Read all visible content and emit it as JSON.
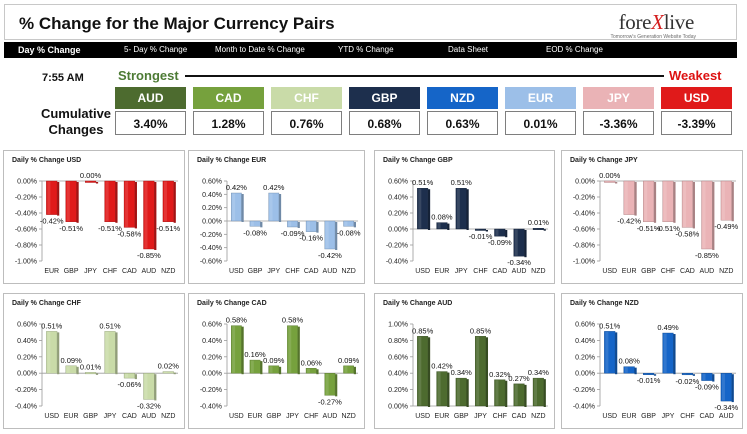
{
  "header": {
    "title": "% Change for the Major Currency Pairs",
    "logo_main": "fore",
    "logo_x": "X",
    "logo_end": "live",
    "logo_tagline": "Tomorrow's Generation Website Today"
  },
  "tabs": [
    {
      "label": "Day % Change",
      "active": true
    },
    {
      "label": "5- Day % Change",
      "active": false
    },
    {
      "label": "Month to Date % Change",
      "active": false
    },
    {
      "label": "YTD % Change",
      "active": false
    },
    {
      "label": "Data Sheet",
      "active": false
    },
    {
      "label": "EOD % Change",
      "active": false
    }
  ],
  "summary": {
    "time": "7:55 AM",
    "strongest_label": "Strongest",
    "weakest_label": "Weakest",
    "cumulative_label": "Cumulative Changes",
    "tiles": [
      {
        "currency": "AUD",
        "value": "3.40%",
        "color": "#4d6b2f"
      },
      {
        "currency": "CAD",
        "value": "1.28%",
        "color": "#76a13d"
      },
      {
        "currency": "CHF",
        "value": "0.76%",
        "color": "#c9dba8"
      },
      {
        "currency": "GBP",
        "value": "0.68%",
        "color": "#1d2f4d"
      },
      {
        "currency": "NZD",
        "value": "0.63%",
        "color": "#1565c8"
      },
      {
        "currency": "EUR",
        "value": "0.01%",
        "color": "#9cbfe8"
      },
      {
        "currency": "JPY",
        "value": "-3.36%",
        "color": "#eab3b6"
      },
      {
        "currency": "USD",
        "value": "-3.39%",
        "color": "#e01a1a"
      }
    ]
  },
  "chart_data": [
    {
      "type": "bar",
      "title": "Daily % Change USD",
      "color": "#e01a1a",
      "categories": [
        "EUR",
        "GBP",
        "JPY",
        "CHF",
        "CAD",
        "AUD",
        "NZD"
      ],
      "values": [
        -0.42,
        -0.51,
        0.0,
        -0.51,
        -0.58,
        -0.85,
        -0.51
      ],
      "labels": [
        "-0.42%",
        "-0.51%",
        "0.00%",
        "-0.51%",
        "-0.58%",
        "-0.85%",
        "-0.51%"
      ],
      "ylim": [
        -1.0,
        0.0
      ],
      "yticks": [
        0.0,
        -0.2,
        -0.4,
        -0.6,
        -0.8,
        -1.0
      ],
      "ytick_labels": [
        "0.00%",
        "-0.20%",
        "-0.40%",
        "-0.60%",
        "-0.80%",
        "-1.00%"
      ]
    },
    {
      "type": "bar",
      "title": "Daily % Change EUR",
      "color": "#9cbfe8",
      "categories": [
        "USD",
        "GBP",
        "JPY",
        "CHF",
        "CAD",
        "AUD",
        "NZD"
      ],
      "values": [
        0.42,
        -0.08,
        0.42,
        -0.09,
        -0.16,
        -0.42,
        -0.08
      ],
      "labels": [
        "0.42%",
        "-0.08%",
        "0.42%",
        "-0.09%",
        "-0.16%",
        "-0.42%",
        "-0.08%"
      ],
      "ylim": [
        -0.6,
        0.6
      ],
      "yticks": [
        0.6,
        0.4,
        0.2,
        0.0,
        -0.2,
        -0.4,
        -0.6
      ],
      "ytick_labels": [
        "0.60%",
        "0.40%",
        "0.20%",
        "0.00%",
        "-0.20%",
        "-0.40%",
        "-0.60%"
      ]
    },
    {
      "type": "bar",
      "title": "Daily % Change GBP",
      "color": "#1d2f4d",
      "categories": [
        "USD",
        "EUR",
        "JPY",
        "CHF",
        "CAD",
        "AUD",
        "NZD"
      ],
      "values": [
        0.51,
        0.08,
        0.51,
        -0.01,
        -0.09,
        -0.34,
        0.01
      ],
      "labels": [
        "0.51%",
        "0.08%",
        "0.51%",
        "-0.01%",
        "-0.09%",
        "-0.34%",
        "0.01%"
      ],
      "ylim": [
        -0.4,
        0.6
      ],
      "yticks": [
        0.6,
        0.4,
        0.2,
        0.0,
        -0.2,
        -0.4
      ],
      "ytick_labels": [
        "0.60%",
        "0.40%",
        "0.20%",
        "0.00%",
        "-0.20%",
        "-0.40%"
      ]
    },
    {
      "type": "bar",
      "title": "Daily % Change JPY",
      "color": "#eab3b6",
      "categories": [
        "USD",
        "EUR",
        "GBP",
        "CHF",
        "CAD",
        "AUD",
        "NZD"
      ],
      "values": [
        0.0,
        -0.42,
        -0.51,
        -0.51,
        -0.58,
        -0.85,
        -0.49
      ],
      "labels": [
        "0.00%",
        "-0.42%",
        "-0.51%",
        "-0.51%",
        "-0.58%",
        "-0.85%",
        "-0.49%"
      ],
      "ylim": [
        -1.0,
        0.0
      ],
      "yticks": [
        0.0,
        -0.2,
        -0.4,
        -0.6,
        -0.8,
        -1.0
      ],
      "ytick_labels": [
        "0.00%",
        "-0.20%",
        "-0.40%",
        "-0.60%",
        "-0.80%",
        "-1.00%"
      ]
    },
    {
      "type": "bar",
      "title": "Daily % Change CHF",
      "color": "#c9dba8",
      "categories": [
        "USD",
        "EUR",
        "GBP",
        "JPY",
        "CAD",
        "AUD",
        "NZD"
      ],
      "values": [
        0.51,
        0.09,
        0.01,
        0.51,
        -0.06,
        -0.32,
        0.02
      ],
      "labels": [
        "0.51%",
        "0.09%",
        "0.01%",
        "0.51%",
        "-0.06%",
        "-0.32%",
        "0.02%"
      ],
      "ylim": [
        -0.4,
        0.6
      ],
      "yticks": [
        0.6,
        0.4,
        0.2,
        0.0,
        -0.2,
        -0.4
      ],
      "ytick_labels": [
        "0.60%",
        "0.40%",
        "0.20%",
        "0.00%",
        "-0.20%",
        "-0.40%"
      ]
    },
    {
      "type": "bar",
      "title": "Daily % Change CAD",
      "color": "#76a13d",
      "categories": [
        "USD",
        "EUR",
        "GBP",
        "JPY",
        "CHF",
        "AUD",
        "NZD"
      ],
      "values": [
        0.58,
        0.16,
        0.09,
        0.58,
        0.06,
        -0.27,
        0.09
      ],
      "labels": [
        "0.58%",
        "0.16%",
        "0.09%",
        "0.58%",
        "0.06%",
        "-0.27%",
        "0.09%"
      ],
      "ylim": [
        -0.4,
        0.6
      ],
      "yticks": [
        0.6,
        0.4,
        0.2,
        0.0,
        -0.2,
        -0.4
      ],
      "ytick_labels": [
        "0.60%",
        "0.40%",
        "0.20%",
        "0.00%",
        "-0.20%",
        "-0.40%"
      ]
    },
    {
      "type": "bar",
      "title": "Daily % Change AUD",
      "color": "#4d6b2f",
      "categories": [
        "USD",
        "EUR",
        "GBP",
        "JPY",
        "CHF",
        "CAD",
        "NZD"
      ],
      "values": [
        0.85,
        0.42,
        0.34,
        0.85,
        0.32,
        0.27,
        0.34
      ],
      "labels": [
        "0.85%",
        "0.42%",
        "0.34%",
        "0.85%",
        "0.32%",
        "0.27%",
        "0.34%"
      ],
      "ylim": [
        0.0,
        1.0
      ],
      "yticks": [
        1.0,
        0.8,
        0.6,
        0.4,
        0.2,
        0.0
      ],
      "ytick_labels": [
        "1.00%",
        "0.80%",
        "0.60%",
        "0.40%",
        "0.20%",
        "0.00%"
      ]
    },
    {
      "type": "bar",
      "title": "Daily % Change NZD",
      "color": "#1565c8",
      "categories": [
        "USD",
        "EUR",
        "GBP",
        "JPY",
        "CHF",
        "CAD",
        "AUD"
      ],
      "values": [
        0.51,
        0.08,
        -0.01,
        0.49,
        -0.02,
        -0.09,
        -0.34
      ],
      "labels": [
        "0.51%",
        "0.08%",
        "-0.01%",
        "0.49%",
        "-0.02%",
        "-0.09%",
        "-0.34%"
      ],
      "ylim": [
        -0.4,
        0.6
      ],
      "yticks": [
        0.6,
        0.4,
        0.2,
        0.0,
        -0.2,
        -0.4
      ],
      "ytick_labels": [
        "0.60%",
        "0.40%",
        "0.20%",
        "0.00%",
        "-0.20%",
        "-0.40%"
      ]
    }
  ]
}
